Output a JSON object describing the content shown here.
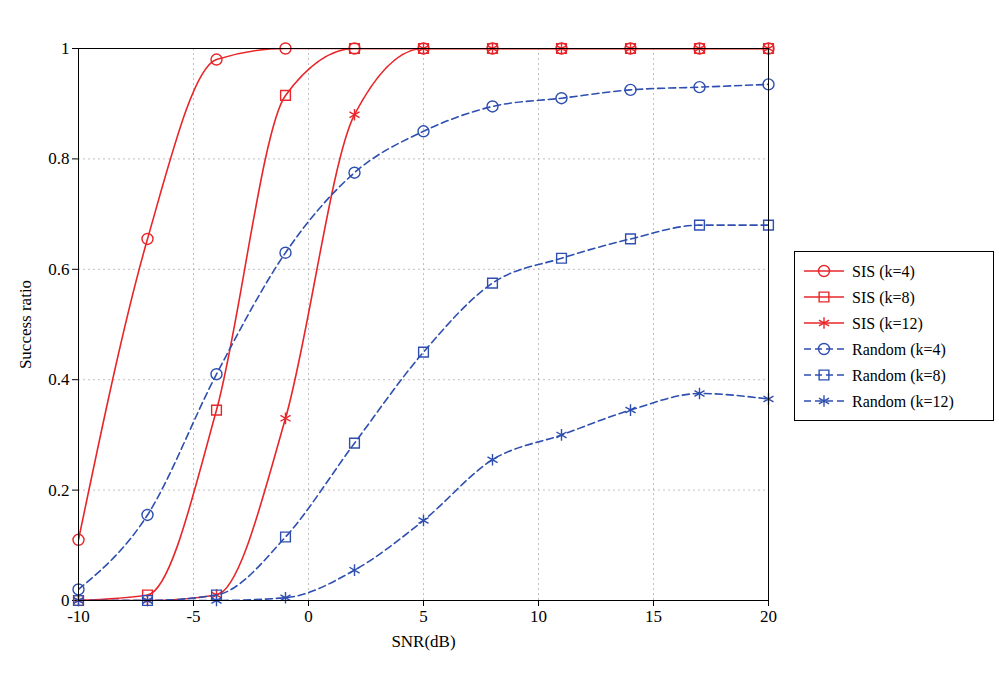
{
  "chart_data": {
    "type": "line",
    "x_label": "SNR(dB)",
    "y_label": "Success ratio",
    "x": [
      -10,
      -7,
      -4,
      -1,
      2,
      5,
      8,
      11,
      14,
      17,
      20
    ],
    "xlim": [
      -10,
      20
    ],
    "xticks": [
      -10,
      -5,
      0,
      5,
      10,
      15,
      20
    ],
    "ylim": [
      0,
      1
    ],
    "yticks": [
      0,
      0.2,
      0.4,
      0.6,
      0.8,
      1
    ],
    "grid": true,
    "legend": "right",
    "series": [
      {
        "name": "SIS (k=4)",
        "color": "#e8262a",
        "marker": "circle",
        "line_style": "solid",
        "values": [
          0.11,
          0.655,
          0.98,
          1.0,
          1.0,
          1.0,
          1.0,
          1.0,
          1.0,
          1.0,
          1.0
        ]
      },
      {
        "name": "SIS (k=8)",
        "color": "#e8262a",
        "marker": "square",
        "line_style": "solid",
        "values": [
          0.0,
          0.01,
          0.345,
          0.915,
          1.0,
          1.0,
          1.0,
          1.0,
          1.0,
          1.0,
          1.0
        ]
      },
      {
        "name": "SIS (k=12)",
        "color": "#e8262a",
        "marker": "asterisk",
        "line_style": "solid",
        "values": [
          0.0,
          0.0,
          0.01,
          0.33,
          0.88,
          1.0,
          1.0,
          1.0,
          1.0,
          1.0,
          1.0
        ]
      },
      {
        "name": "Random (k=4)",
        "color": "#2e4fb0",
        "marker": "circle",
        "line_style": "dashed",
        "values": [
          0.02,
          0.155,
          0.41,
          0.63,
          0.775,
          0.85,
          0.895,
          0.91,
          0.925,
          0.93,
          0.935
        ]
      },
      {
        "name": "Random (k=8)",
        "color": "#2e4fb0",
        "marker": "square",
        "line_style": "dashed",
        "values": [
          0.0,
          0.0,
          0.01,
          0.115,
          0.285,
          0.45,
          0.575,
          0.62,
          0.655,
          0.68,
          0.68
        ]
      },
      {
        "name": "Random (k=12)",
        "color": "#2e4fb0",
        "marker": "asterisk",
        "line_style": "dashed",
        "values": [
          0.0,
          0.0,
          0.0,
          0.005,
          0.055,
          0.145,
          0.255,
          0.3,
          0.345,
          0.375,
          0.365
        ]
      }
    ]
  }
}
